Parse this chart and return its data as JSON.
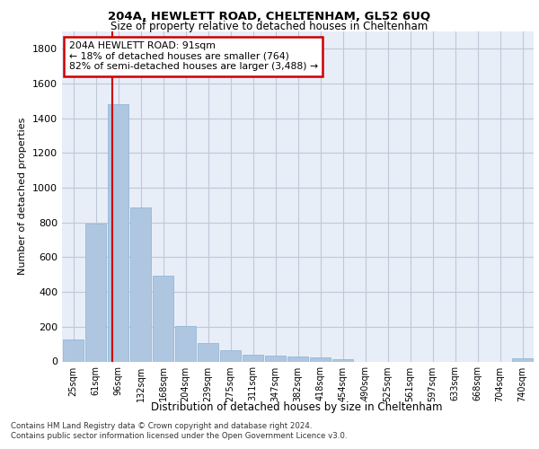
{
  "title1": "204A, HEWLETT ROAD, CHELTENHAM, GL52 6UQ",
  "title2": "Size of property relative to detached houses in Cheltenham",
  "xlabel": "Distribution of detached houses by size in Cheltenham",
  "ylabel": "Number of detached properties",
  "categories": [
    "25sqm",
    "61sqm",
    "96sqm",
    "132sqm",
    "168sqm",
    "204sqm",
    "239sqm",
    "275sqm",
    "311sqm",
    "347sqm",
    "382sqm",
    "418sqm",
    "454sqm",
    "490sqm",
    "525sqm",
    "561sqm",
    "597sqm",
    "633sqm",
    "668sqm",
    "704sqm",
    "740sqm"
  ],
  "values": [
    125,
    795,
    1480,
    885,
    495,
    205,
    105,
    65,
    40,
    35,
    30,
    25,
    15,
    0,
    0,
    0,
    0,
    0,
    0,
    0,
    20
  ],
  "bar_color": "#aec6e0",
  "bar_edge_color": "#8cb0d0",
  "vline_x": 1.75,
  "vline_color": "#cc0000",
  "annotation_text": "204A HEWLETT ROAD: 91sqm\n← 18% of detached houses are smaller (764)\n82% of semi-detached houses are larger (3,488) →",
  "annotation_box_color": "#ffffff",
  "annotation_box_edge": "#cc0000",
  "ylim": [
    0,
    1900
  ],
  "yticks": [
    0,
    200,
    400,
    600,
    800,
    1000,
    1200,
    1400,
    1600,
    1800
  ],
  "footer1": "Contains HM Land Registry data © Crown copyright and database right 2024.",
  "footer2": "Contains public sector information licensed under the Open Government Licence v3.0.",
  "bg_color": "#ffffff",
  "plot_bg_color": "#e8eef8"
}
